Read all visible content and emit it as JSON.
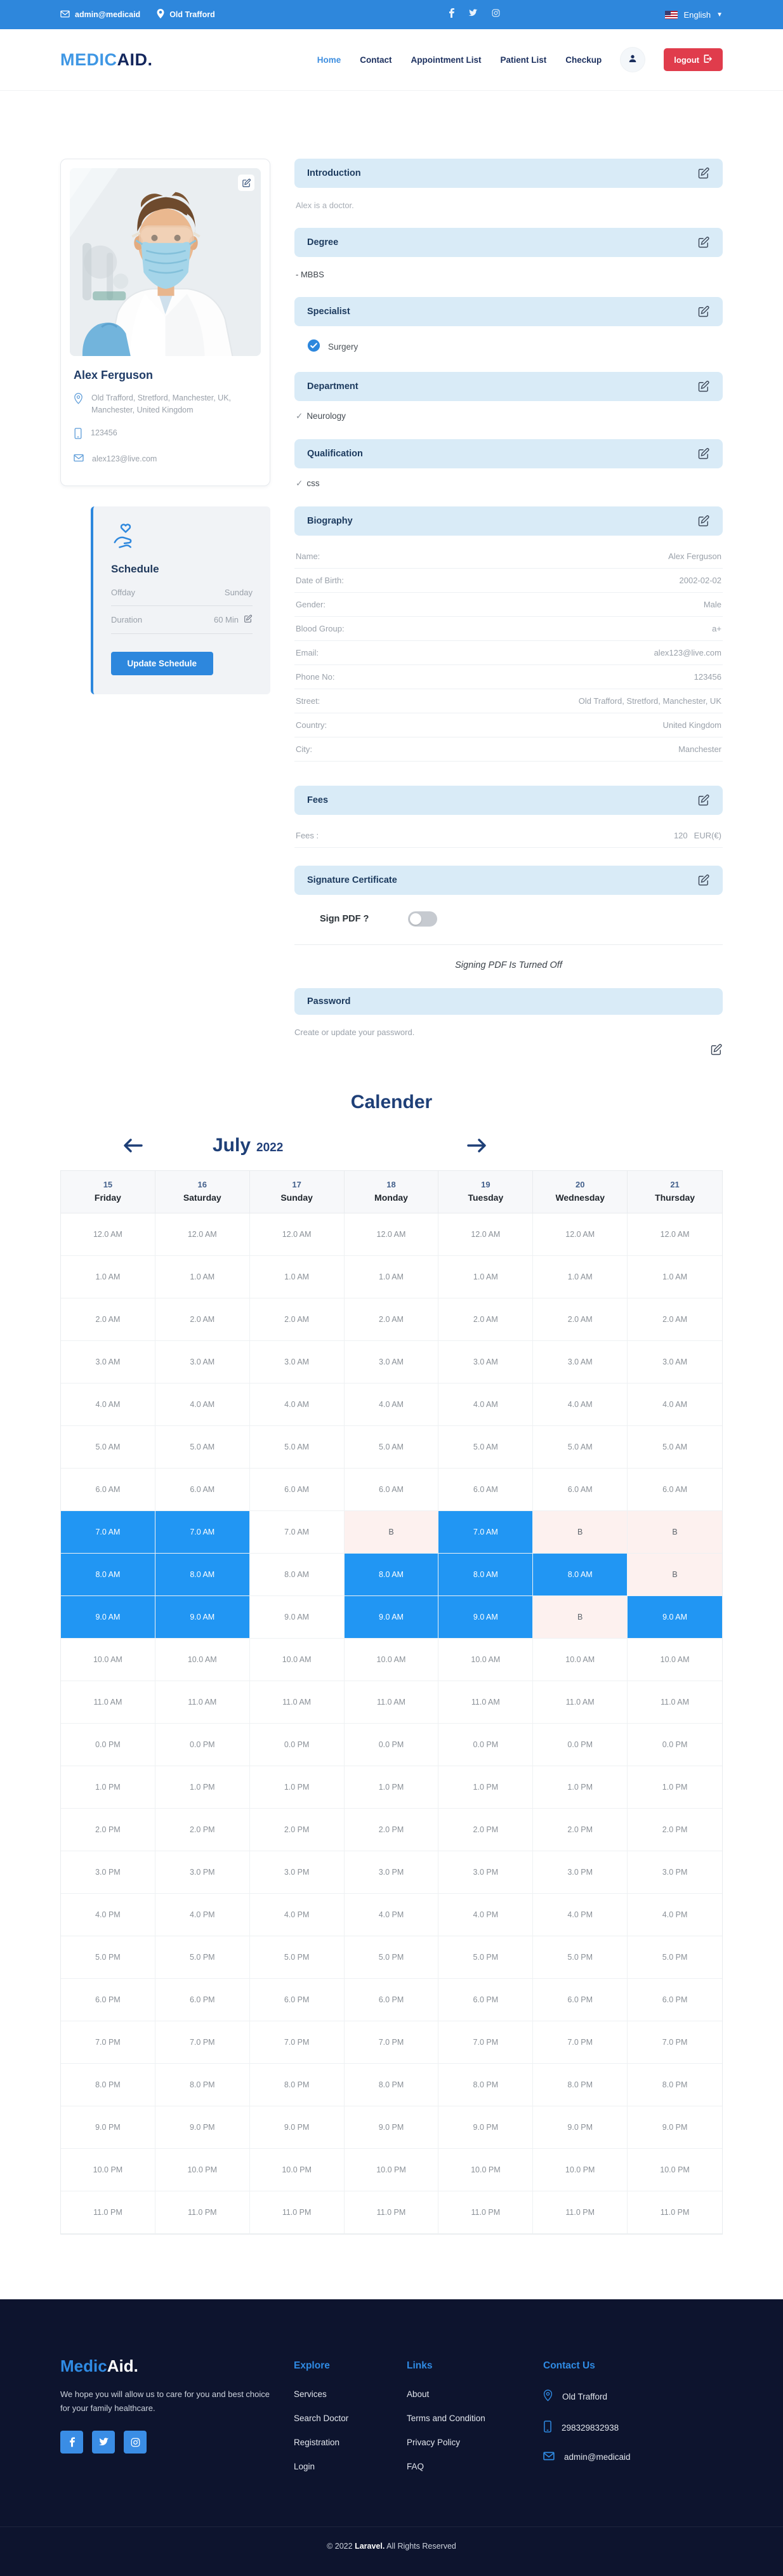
{
  "colors": {
    "topbar_blue": "#2e87dc",
    "accent_blue": "#2d87dd",
    "logo_blue": "#3f97e4",
    "navy": "#13265c",
    "logout_red": "#e03c4c",
    "section_header_bg": "#d9ebf7",
    "booked_cell": "#2196f3",
    "break_cell": "#fdf1ef",
    "footer_bg": "#0d142e"
  },
  "topbar": {
    "email": "admin@medicaid",
    "location": "Old Trafford",
    "language": "English",
    "social": [
      "facebook-icon",
      "twitter-icon",
      "instagram-icon"
    ]
  },
  "header": {
    "logo_primary": "MEDIC",
    "logo_secondary": "AID.",
    "nav": [
      {
        "label": "Home",
        "active": true
      },
      {
        "label": "Contact",
        "active": false
      },
      {
        "label": "Appointment List",
        "active": false
      },
      {
        "label": "Patient List",
        "active": false
      },
      {
        "label": "Checkup",
        "active": false
      }
    ],
    "logout_label": "logout"
  },
  "profile": {
    "name": "Alex Ferguson",
    "address": "Old Trafford, Stretford, Manchester, UK, Manchester, United Kingdom",
    "phone": "123456",
    "email": "alex123@live.com"
  },
  "schedule": {
    "title": "Schedule",
    "offday_label": "Offday",
    "offday_value": "Sunday",
    "duration_label": "Duration",
    "duration_value": "60 Min",
    "button_label": "Update Schedule"
  },
  "sections": {
    "introduction": {
      "title": "Introduction",
      "body": "Alex is a doctor."
    },
    "degree": {
      "title": "Degree",
      "body": "- MBBS"
    },
    "specialist": {
      "title": "Specialist",
      "item": "Surgery"
    },
    "department": {
      "title": "Department",
      "check": "✓",
      "item": "Neurology"
    },
    "qualification": {
      "title": "Qualification",
      "check": "✓",
      "item": "css"
    },
    "biography": {
      "title": "Biography",
      "rows": [
        {
          "label": "Name:",
          "value": "Alex Ferguson"
        },
        {
          "label": "Date of Birth:",
          "value": "2002-02-02"
        },
        {
          "label": "Gender:",
          "value": "Male"
        },
        {
          "label": "Blood Group:",
          "value": "a+"
        },
        {
          "label": "Email:",
          "value": "alex123@live.com"
        },
        {
          "label": "Phone No:",
          "value": "123456"
        },
        {
          "label": "Street:",
          "value": "Old Trafford, Stretford, Manchester, UK"
        },
        {
          "label": "Country:",
          "value": "United Kingdom"
        },
        {
          "label": "City:",
          "value": "Manchester"
        }
      ]
    },
    "fees": {
      "title": "Fees",
      "label": "Fees :",
      "amount": "120",
      "currency": "EUR(€)"
    },
    "signature": {
      "title": "Signature Certificate",
      "sign_label": "Sign PDF ?",
      "toggle_on": false,
      "status": "Signing PDF Is Turned Off"
    },
    "password": {
      "title": "Password",
      "hint": "Create or update your password."
    }
  },
  "calendar": {
    "title": "Calender",
    "month": "July",
    "year": "2022",
    "break_label": "B",
    "days": [
      {
        "date": "15",
        "name": "Friday"
      },
      {
        "date": "16",
        "name": "Saturday"
      },
      {
        "date": "17",
        "name": "Sunday"
      },
      {
        "date": "18",
        "name": "Monday"
      },
      {
        "date": "19",
        "name": "Tuesday"
      },
      {
        "date": "20",
        "name": "Wednesday"
      },
      {
        "date": "21",
        "name": "Thursday"
      }
    ],
    "rows": [
      {
        "time": "12.0 AM",
        "states": [
          "n",
          "n",
          "n",
          "n",
          "n",
          "n",
          "n"
        ]
      },
      {
        "time": "1.0 AM",
        "states": [
          "n",
          "n",
          "n",
          "n",
          "n",
          "n",
          "n"
        ]
      },
      {
        "time": "2.0 AM",
        "states": [
          "n",
          "n",
          "n",
          "n",
          "n",
          "n",
          "n"
        ]
      },
      {
        "time": "3.0 AM",
        "states": [
          "n",
          "n",
          "n",
          "n",
          "n",
          "n",
          "n"
        ]
      },
      {
        "time": "4.0 AM",
        "states": [
          "n",
          "n",
          "n",
          "n",
          "n",
          "n",
          "n"
        ]
      },
      {
        "time": "5.0 AM",
        "states": [
          "n",
          "n",
          "n",
          "n",
          "n",
          "n",
          "n"
        ]
      },
      {
        "time": "6.0 AM",
        "states": [
          "n",
          "n",
          "n",
          "n",
          "n",
          "n",
          "n"
        ]
      },
      {
        "time": "7.0 AM",
        "states": [
          "b",
          "b",
          "n",
          "x",
          "b",
          "x",
          "x"
        ]
      },
      {
        "time": "8.0 AM",
        "states": [
          "b",
          "b",
          "n",
          "b",
          "b",
          "b",
          "x"
        ]
      },
      {
        "time": "9.0 AM",
        "states": [
          "b",
          "b",
          "n",
          "b",
          "b",
          "x",
          "b"
        ]
      },
      {
        "time": "10.0 AM",
        "states": [
          "n",
          "n",
          "n",
          "n",
          "n",
          "n",
          "n"
        ]
      },
      {
        "time": "11.0 AM",
        "states": [
          "n",
          "n",
          "n",
          "n",
          "n",
          "n",
          "n"
        ]
      },
      {
        "time": "0.0 PM",
        "states": [
          "n",
          "n",
          "n",
          "n",
          "n",
          "n",
          "n"
        ]
      },
      {
        "time": "1.0 PM",
        "states": [
          "n",
          "n",
          "n",
          "n",
          "n",
          "n",
          "n"
        ]
      },
      {
        "time": "2.0 PM",
        "states": [
          "n",
          "n",
          "n",
          "n",
          "n",
          "n",
          "n"
        ]
      },
      {
        "time": "3.0 PM",
        "states": [
          "n",
          "n",
          "n",
          "n",
          "n",
          "n",
          "n"
        ]
      },
      {
        "time": "4.0 PM",
        "states": [
          "n",
          "n",
          "n",
          "n",
          "n",
          "n",
          "n"
        ]
      },
      {
        "time": "5.0 PM",
        "states": [
          "n",
          "n",
          "n",
          "n",
          "n",
          "n",
          "n"
        ]
      },
      {
        "time": "6.0 PM",
        "states": [
          "n",
          "n",
          "n",
          "n",
          "n",
          "n",
          "n"
        ]
      },
      {
        "time": "7.0 PM",
        "states": [
          "n",
          "n",
          "n",
          "n",
          "n",
          "n",
          "n"
        ]
      },
      {
        "time": "8.0 PM",
        "states": [
          "n",
          "n",
          "n",
          "n",
          "n",
          "n",
          "n"
        ]
      },
      {
        "time": "9.0 PM",
        "states": [
          "n",
          "n",
          "n",
          "n",
          "n",
          "n",
          "n"
        ]
      },
      {
        "time": "10.0 PM",
        "states": [
          "n",
          "n",
          "n",
          "n",
          "n",
          "n",
          "n"
        ]
      },
      {
        "time": "11.0 PM",
        "states": [
          "n",
          "n",
          "n",
          "n",
          "n",
          "n",
          "n"
        ]
      }
    ]
  },
  "footer": {
    "logo_primary": "Medic",
    "logo_secondary": "Aid.",
    "description": "We hope you will allow us to care for you and best choice for your family healthcare.",
    "explore": {
      "title": "Explore",
      "links": [
        "Services",
        "Search Doctor",
        "Registration",
        "Login"
      ]
    },
    "links": {
      "title": "Links",
      "links": [
        "About",
        "Terms and Condition",
        "Privacy Policy",
        "FAQ"
      ]
    },
    "contact": {
      "title": "Contact Us",
      "location": "Old Trafford",
      "phone": "298329832938",
      "email": "admin@medicaid"
    },
    "copyright_prefix": "© 2022 ",
    "copyright_brand": "Laravel.",
    "copyright_suffix": " All Rights Reserved"
  }
}
